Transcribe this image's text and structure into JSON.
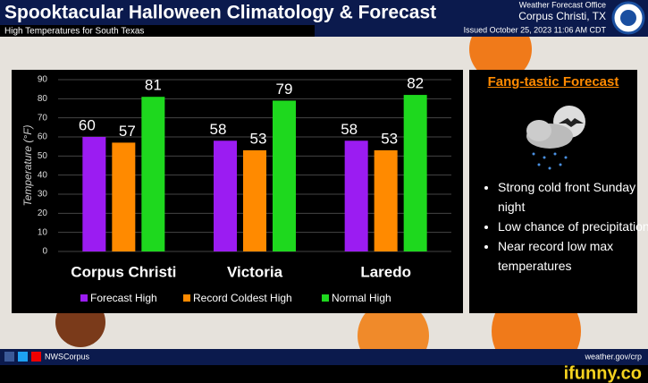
{
  "header": {
    "title": "Spooktacular Halloween Climatology & Forecast",
    "subtitle": "High Temperatures for South Texas",
    "office": "Weather Forecast Office",
    "location": "Corpus Christi, TX",
    "issued": "Issued October 25, 2023 11:06 AM CDT"
  },
  "chart_data": {
    "type": "bar",
    "y_label": "Temperature (°F)",
    "categories": [
      "Corpus Christi",
      "Victoria",
      "Laredo"
    ],
    "series": [
      {
        "name": "Forecast High",
        "color": "#9b1cf2",
        "values": [
          60,
          58,
          58
        ]
      },
      {
        "name": "Record Coldest High",
        "color": "#ff8a00",
        "values": [
          57,
          53,
          53
        ]
      },
      {
        "name": "Normal High",
        "color": "#1ed81e",
        "values": [
          81,
          79,
          82
        ]
      }
    ],
    "ylim": [
      0,
      90
    ],
    "yticks": [
      0,
      10,
      20,
      30,
      40,
      50,
      60,
      70,
      80,
      90
    ],
    "grid": true
  },
  "forecast": {
    "title": "Fang-tastic Forecast",
    "bullets": [
      "Strong cold front Sunday night",
      "Low chance of precipitation",
      "Near record low max temperatures"
    ]
  },
  "footer": {
    "handle": "NWSCorpus",
    "url": "weather.gov/crp"
  },
  "watermark": "ifunny.co"
}
